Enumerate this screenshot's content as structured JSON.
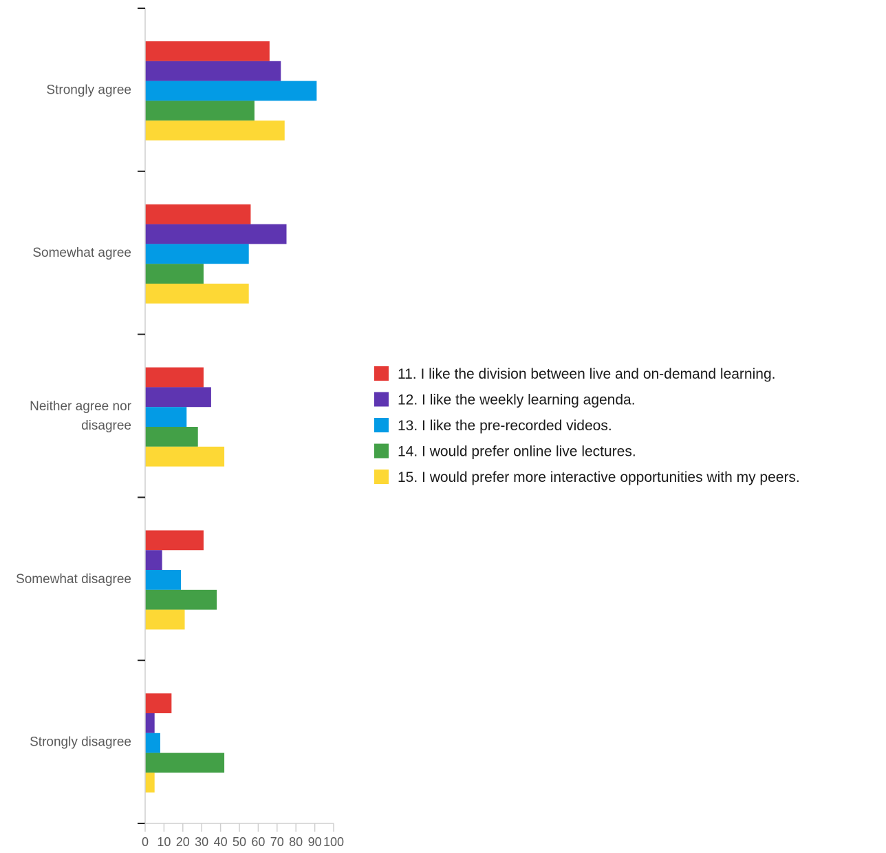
{
  "chart_data": {
    "type": "bar",
    "orientation": "horizontal",
    "categories": [
      "Strongly agree",
      "Somewhat agree",
      [
        "Neither agree nor",
        "disagree"
      ],
      "Somewhat disagree",
      "Strongly disagree"
    ],
    "series": [
      {
        "name": "11. I like the division between live and on-demand learning.",
        "color": "#e53935",
        "values": [
          66,
          56,
          31,
          31,
          14
        ]
      },
      {
        "name": "12. I like the weekly learning agenda.",
        "color": "#5e35b1",
        "values": [
          72,
          75,
          35,
          9,
          5
        ]
      },
      {
        "name": "13. I like the pre-recorded videos.",
        "color": "#039be5",
        "values": [
          91,
          55,
          22,
          19,
          8
        ]
      },
      {
        "name": "14. I would prefer online live lectures.",
        "color": "#43a047",
        "values": [
          58,
          31,
          28,
          38,
          42
        ]
      },
      {
        "name": "15. I would prefer more interactive opportunities with my peers.",
        "color": "#fdd835",
        "values": [
          74,
          55,
          42,
          21,
          5
        ]
      }
    ],
    "xlim": [
      0,
      100
    ],
    "xticks": [
      "0",
      "10",
      "20",
      "30",
      "40",
      "50",
      "60",
      "70",
      "80",
      "90",
      "100"
    ],
    "legend": "right",
    "grid": false
  }
}
